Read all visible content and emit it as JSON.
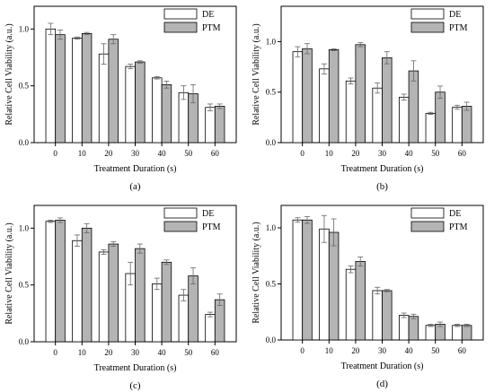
{
  "colors": {
    "DE": "#ffffff",
    "PTM": "#b4b4b4",
    "stroke": "#000000",
    "error": "#666666"
  },
  "chart_data": [
    {
      "type": "bar",
      "label": "(a)",
      "xlabel": "Treatment Duration (s)",
      "ylabel": "Relative Cell Viability (a.u.)",
      "categories": [
        "0",
        "10",
        "20",
        "30",
        "40",
        "50",
        "60"
      ],
      "ylim": [
        0,
        1.2
      ],
      "yticks": [
        "0.0",
        "0.5",
        "1.0"
      ],
      "legend_position": "top-right",
      "series": [
        {
          "name": "DE",
          "values": [
            1.0,
            0.92,
            0.78,
            0.67,
            0.57,
            0.44,
            0.31
          ],
          "errors": [
            0.05,
            0.01,
            0.09,
            0.02,
            0.01,
            0.06,
            0.03
          ]
        },
        {
          "name": "PTM",
          "values": [
            0.95,
            0.96,
            0.91,
            0.71,
            0.51,
            0.43,
            0.32
          ],
          "errors": [
            0.04,
            0.01,
            0.04,
            0.01,
            0.03,
            0.08,
            0.02
          ]
        }
      ]
    },
    {
      "type": "bar",
      "label": "(b)",
      "xlabel": "Treatment Duration (s)",
      "ylabel": "Relative Cell Viability (a.u.)",
      "categories": [
        "0",
        "10",
        "20",
        "30",
        "40",
        "50",
        "60"
      ],
      "ylim": [
        0,
        1.35
      ],
      "yticks": [
        "0.0",
        "0.5",
        "1.0"
      ],
      "legend_position": "top-right",
      "series": [
        {
          "name": "DE",
          "values": [
            0.9,
            0.73,
            0.61,
            0.54,
            0.45,
            0.29,
            0.35
          ],
          "errors": [
            0.05,
            0.05,
            0.03,
            0.05,
            0.03,
            0.01,
            0.02
          ]
        },
        {
          "name": "PTM",
          "values": [
            0.93,
            0.92,
            0.97,
            0.84,
            0.71,
            0.5,
            0.36
          ],
          "errors": [
            0.05,
            0.01,
            0.02,
            0.06,
            0.1,
            0.06,
            0.04
          ]
        }
      ]
    },
    {
      "type": "bar",
      "label": "(c)",
      "xlabel": "Treatment Duration (s)",
      "ylabel": "Relative Cell Viability (a.u.)",
      "categories": [
        "0",
        "10",
        "20",
        "30",
        "40",
        "50",
        "60"
      ],
      "ylim": [
        0,
        1.2
      ],
      "yticks": [
        "0.0",
        "0.5",
        "1.0"
      ],
      "legend_position": "top-right",
      "series": [
        {
          "name": "DE",
          "values": [
            1.06,
            0.89,
            0.79,
            0.6,
            0.51,
            0.41,
            0.24
          ],
          "errors": [
            0.01,
            0.05,
            0.02,
            0.1,
            0.05,
            0.05,
            0.02
          ]
        },
        {
          "name": "PTM",
          "values": [
            1.07,
            1.0,
            0.86,
            0.82,
            0.7,
            0.58,
            0.37
          ],
          "errors": [
            0.02,
            0.04,
            0.02,
            0.04,
            0.02,
            0.07,
            0.05
          ]
        }
      ]
    },
    {
      "type": "bar",
      "label": "(d)",
      "xlabel": "Treatment Duration (s)",
      "ylabel": "Relative Cell Viability (a.u.)",
      "categories": [
        "0",
        "10",
        "20",
        "30",
        "40",
        "50",
        "60"
      ],
      "ylim": [
        0,
        1.2
      ],
      "yticks": [
        "0.0",
        "0.5",
        "1.0"
      ],
      "legend_position": "top-right",
      "series": [
        {
          "name": "DE",
          "values": [
            1.07,
            0.99,
            0.63,
            0.44,
            0.22,
            0.13,
            0.13
          ],
          "errors": [
            0.02,
            0.12,
            0.03,
            0.03,
            0.02,
            0.01,
            0.01
          ]
        },
        {
          "name": "PTM",
          "values": [
            1.07,
            0.96,
            0.7,
            0.44,
            0.21,
            0.14,
            0.13
          ],
          "errors": [
            0.03,
            0.12,
            0.04,
            0.01,
            0.02,
            0.02,
            0.01
          ]
        }
      ]
    }
  ]
}
